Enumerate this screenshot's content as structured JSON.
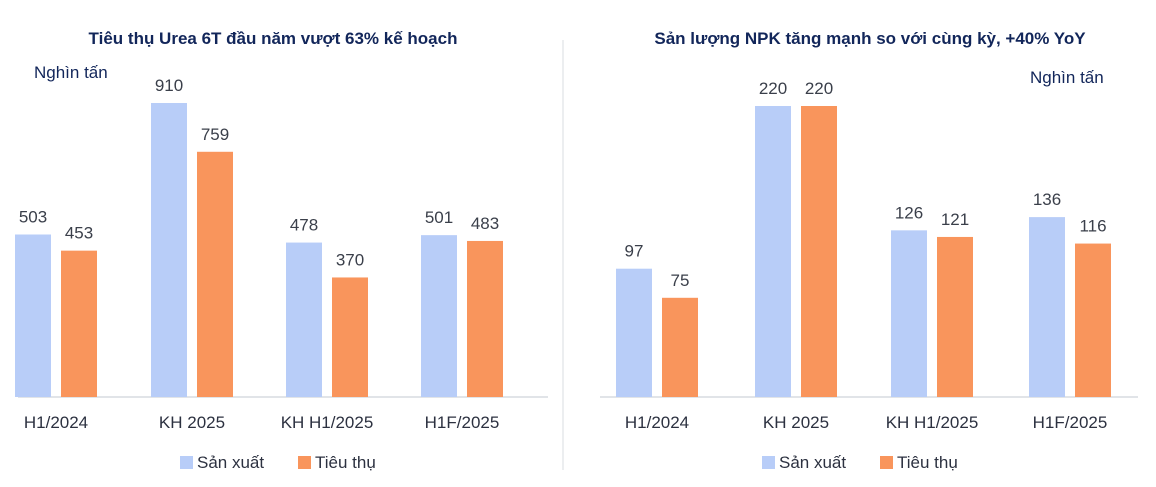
{
  "chart_data": [
    {
      "type": "bar",
      "title": "Tiêu thụ Urea 6T đầu năm vượt 63% kế hoạch",
      "unit": "Nghìn tấn",
      "categories": [
        "H1/2024",
        "KH 2025",
        "KH H1/2025",
        "H1F/2025"
      ],
      "series": [
        {
          "name": "Sản xuất",
          "values": [
            503,
            910,
            478,
            501
          ],
          "color": "#b8cdf8"
        },
        {
          "name": "Tiêu thụ",
          "values": [
            453,
            759,
            370,
            483
          ],
          "color": "#f9955c"
        }
      ],
      "ylim": [
        0,
        1000
      ],
      "grid": false,
      "legend": "bottom"
    },
    {
      "type": "bar",
      "title": "Sản lượng NPK tăng mạnh so với cùng kỳ, +40% YoY",
      "unit": "Nghìn tấn",
      "categories": [
        "H1/2024",
        "KH 2025",
        "KH H1/2025",
        "H1F/2025"
      ],
      "series": [
        {
          "name": "Sản xuất",
          "values": [
            97,
            220,
            126,
            136
          ],
          "color": "#b8cdf8"
        },
        {
          "name": "Tiêu thụ",
          "values": [
            75,
            220,
            121,
            116
          ],
          "color": "#f9955c"
        }
      ],
      "ylim": [
        0,
        240
      ],
      "grid": false,
      "legend": "bottom"
    }
  ],
  "colors": {
    "axis": "#cfd3da",
    "divider": "#d9dce2"
  }
}
